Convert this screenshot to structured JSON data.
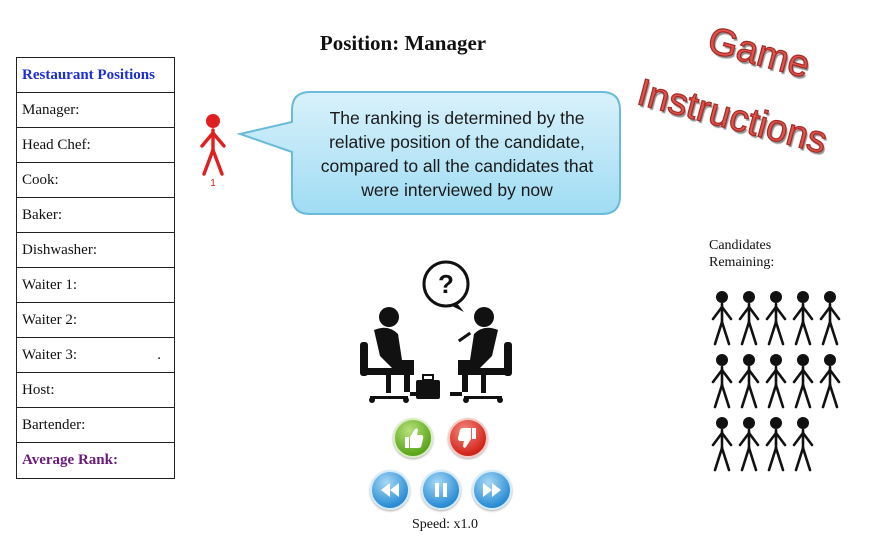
{
  "title": "Position: Manager",
  "positions_table": {
    "header": "Restaurant Positions",
    "rows": [
      "Manager:",
      "Head Chef:",
      "Cook:",
      "Baker:",
      "Dishwasher:",
      "Waiter 1:",
      "Waiter 2:",
      "Waiter 3:",
      "Host:",
      "Bartender:"
    ],
    "waiter3_trailing": ".",
    "footer": "Average Rank:"
  },
  "candidate": {
    "number": "1",
    "color": "#e02020"
  },
  "speech_bubble": {
    "text": "The ranking is determined by the relative position of the candidate, compared to all the candidates that were interviewed by now",
    "fill_top": "#d9f1fb",
    "fill_bottom": "#9fdcf3",
    "border": "#6bbad8"
  },
  "game_instructions": {
    "line1": "Game",
    "line2": "Instructions",
    "color": "#e0524c"
  },
  "speed": "Speed: x1.0",
  "candidates_remaining": {
    "label_line1": "Candidates",
    "label_line2": "Remaining:",
    "count": 14
  },
  "icons": {
    "like": "thumbs-up-icon",
    "dislike": "thumbs-down-icon",
    "rewind": "rewind-icon",
    "pause": "pause-icon",
    "forward": "fast-forward-icon"
  }
}
